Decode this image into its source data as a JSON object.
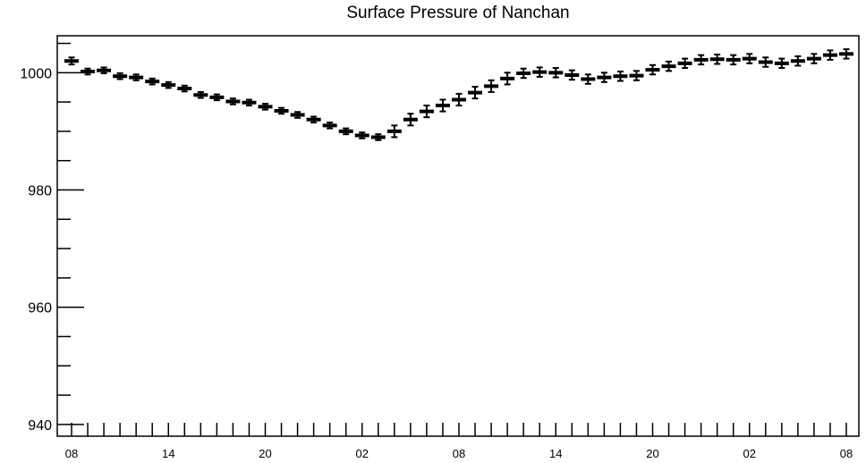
{
  "chart_data": {
    "type": "scatter",
    "title": "Surface Pressure of Nanchan",
    "xlabel": "",
    "ylabel": "",
    "ylim": [
      938,
      1006.3
    ],
    "xlim": [
      0,
      48.5
    ],
    "y_ticks": [
      940,
      960,
      980,
      1000
    ],
    "x_ticks": [
      {
        "x": 1,
        "label": "08"
      },
      {
        "x": 7,
        "label": "14"
      },
      {
        "x": 13,
        "label": "20"
      },
      {
        "x": 19,
        "label": "02"
      },
      {
        "x": 25,
        "label": "08"
      },
      {
        "x": 31,
        "label": "14"
      },
      {
        "x": 37,
        "label": "20"
      },
      {
        "x": 43,
        "label": "02"
      },
      {
        "x": 49,
        "label": "08"
      }
    ],
    "error_bars": true,
    "grid": false,
    "series": [
      {
        "x": [
          1,
          2,
          3,
          4,
          5,
          6,
          7,
          8,
          9,
          10,
          11,
          12,
          13,
          14,
          15,
          16,
          17,
          18,
          19,
          20,
          21,
          22,
          23,
          24,
          25,
          26,
          27,
          28,
          29,
          30,
          31,
          32,
          33,
          34,
          35,
          36,
          37,
          38,
          39,
          40,
          41,
          42,
          43,
          44,
          45,
          46,
          47,
          48,
          49
        ],
        "values": [
          1002,
          1000.2,
          1000.4,
          999.4,
          999.2,
          998.5,
          997.9,
          997.3,
          996.2,
          995.8,
          995.1,
          994.9,
          994.2,
          993.5,
          992.8,
          992,
          991,
          990,
          989.3,
          989,
          990,
          992,
          993.4,
          994.4,
          995.4,
          996.6,
          997.7,
          999,
          999.9,
          1000.1,
          1000,
          999.6,
          998.9,
          999.2,
          999.4,
          999.5,
          1000.5,
          1001.1,
          1001.6,
          1002.2,
          1002.3,
          1002.2,
          1002.4,
          1001.8,
          1001.6,
          1002,
          1002.4,
          1003,
          1003.2
        ],
        "errors": [
          0.6,
          0.5,
          0.5,
          0.5,
          0.5,
          0.5,
          0.5,
          0.5,
          0.5,
          0.5,
          0.5,
          0.5,
          0.5,
          0.5,
          0.5,
          0.5,
          0.5,
          0.5,
          0.5,
          0.5,
          1.0,
          1.0,
          1.0,
          1.0,
          1.0,
          1.0,
          1.0,
          1.0,
          0.8,
          0.8,
          0.8,
          0.8,
          0.8,
          0.8,
          0.8,
          0.8,
          0.8,
          0.8,
          0.8,
          0.8,
          0.8,
          0.8,
          0.8,
          0.8,
          0.8,
          0.8,
          0.8,
          0.8,
          0.8
        ]
      }
    ]
  }
}
